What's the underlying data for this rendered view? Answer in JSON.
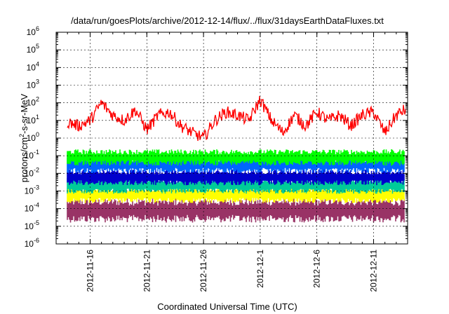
{
  "chart_data": {
    "type": "line",
    "title": "/data/run/goesPlots/archive/2012-12-14/flux/../flux/31daysEarthDataFluxes.txt",
    "xlabel": "Coordinated Universal Time (UTC)",
    "ylabel_parts": {
      "base": "protons/cm",
      "sup": "2",
      "rest": "-s-sr-MeV"
    },
    "yscale": "log",
    "ylim": [
      1e-06,
      1000000.0
    ],
    "y_ticks": [
      {
        "value": 1e-06,
        "base": "10",
        "exp": "-6"
      },
      {
        "value": 1e-05,
        "base": "10",
        "exp": "-5"
      },
      {
        "value": 0.0001,
        "base": "10",
        "exp": "-4"
      },
      {
        "value": 0.001,
        "base": "10",
        "exp": "-3"
      },
      {
        "value": 0.01,
        "base": "10",
        "exp": "-2"
      },
      {
        "value": 0.1,
        "base": "10",
        "exp": "-1"
      },
      {
        "value": 1,
        "base": "10",
        "exp": "0"
      },
      {
        "value": 10,
        "base": "10",
        "exp": "1"
      },
      {
        "value": 100,
        "base": "10",
        "exp": "2"
      },
      {
        "value": 1000.0,
        "base": "10",
        "exp": "3"
      },
      {
        "value": 10000.0,
        "base": "10",
        "exp": "4"
      },
      {
        "value": 100000.0,
        "base": "10",
        "exp": "5"
      },
      {
        "value": 1000000.0,
        "base": "10",
        "exp": "6"
      }
    ],
    "xlim": [
      "2012-11-13",
      "2012-12-14"
    ],
    "x_ticks": [
      {
        "date": "2012-11-16",
        "label": "2012-11-16"
      },
      {
        "date": "2012-11-21",
        "label": "2012-11-21"
      },
      {
        "date": "2012-11-26",
        "label": "2012-11-26"
      },
      {
        "date": "2012-12-01",
        "label": "2012-12-1"
      },
      {
        "date": "2012-12-06",
        "label": "2012-12-6"
      },
      {
        "date": "2012-12-11",
        "label": "2012-12-11"
      }
    ],
    "grid": true,
    "series_colors": [
      "#993366",
      "#ffff00",
      "#00cc99",
      "#0066ff",
      "#0000cc",
      "#00ff00",
      "#ff0000"
    ],
    "series": [
      {
        "color": "#ff0000",
        "x": [
          "2012-11-13",
          "2012-11-14",
          "2012-11-15",
          "2012-11-16",
          "2012-11-17",
          "2012-11-18",
          "2012-11-19",
          "2012-11-20",
          "2012-11-21",
          "2012-11-22",
          "2012-11-23",
          "2012-11-24",
          "2012-11-25",
          "2012-11-26",
          "2012-11-27",
          "2012-11-28",
          "2012-11-29",
          "2012-11-30",
          "2012-12-01",
          "2012-12-02",
          "2012-12-03",
          "2012-12-04",
          "2012-12-05",
          "2012-12-06",
          "2012-12-07",
          "2012-12-08",
          "2012-12-09",
          "2012-12-10",
          "2012-12-11",
          "2012-12-12",
          "2012-12-13",
          "2012-12-14"
        ],
        "values": [
          20,
          8,
          5,
          10,
          100,
          20,
          10,
          40,
          3,
          20,
          30,
          5,
          2,
          1,
          10,
          30,
          20,
          10,
          150,
          10,
          2,
          20,
          5,
          30,
          10,
          20,
          5,
          20,
          30,
          2,
          20,
          50
        ]
      },
      {
        "color": "#00ff00",
        "x": [
          "2012-11-13",
          "2012-12-14"
        ],
        "values": [
          0.08,
          0.08
        ]
      },
      {
        "color": "#0066ff",
        "x": [
          "2012-11-13",
          "2012-12-14"
        ],
        "values": [
          0.03,
          0.03
        ]
      },
      {
        "color": "#0000cc",
        "x": [
          "2012-11-13",
          "2012-12-14"
        ],
        "values": [
          0.006,
          0.006
        ]
      },
      {
        "color": "#00cc99",
        "x": [
          "2012-11-13",
          "2012-12-14"
        ],
        "values": [
          0.002,
          0.002
        ]
      },
      {
        "color": "#ffff00",
        "x": [
          "2012-11-13",
          "2012-12-14"
        ],
        "values": [
          0.0006,
          0.0006
        ]
      },
      {
        "color": "#993366",
        "x": [
          "2012-11-13",
          "2012-12-14"
        ],
        "values": [
          8e-05,
          8e-05
        ]
      }
    ]
  }
}
